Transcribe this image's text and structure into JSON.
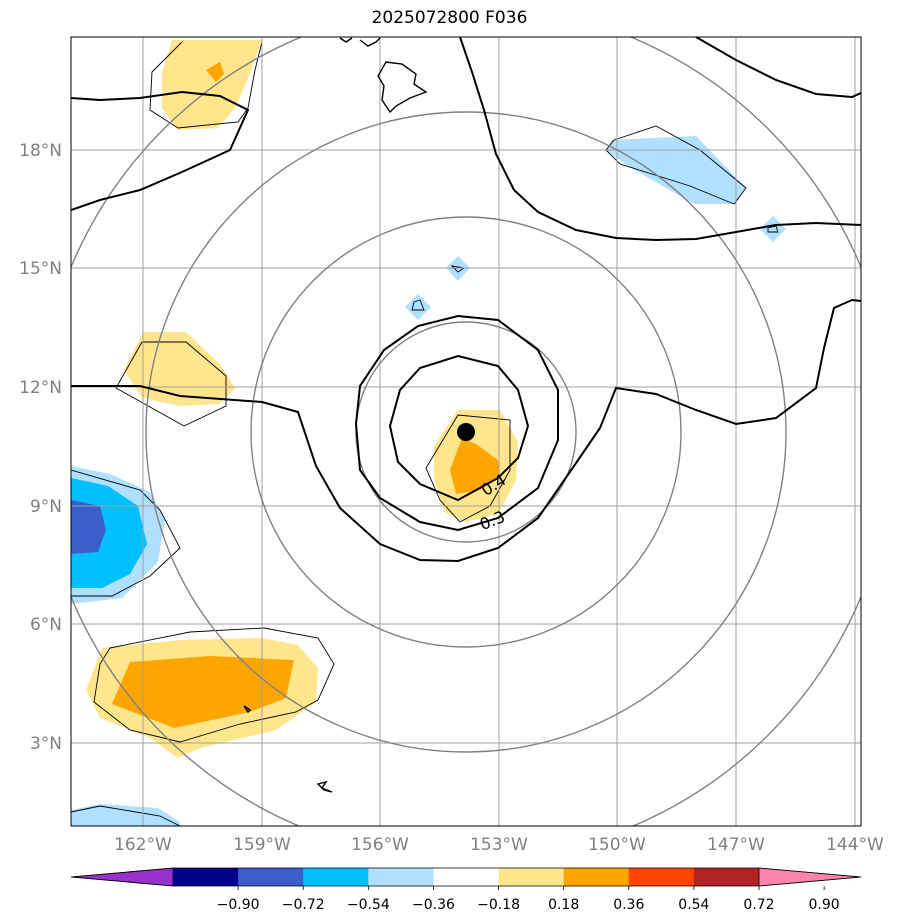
{
  "title": "2025072800 F036",
  "map": {
    "lon_labels": [
      "162°W",
      "159°W",
      "156°W",
      "153°W",
      "150°W",
      "147°W",
      "144°W"
    ],
    "lat_labels": [
      "18°N",
      "15°N",
      "12°N",
      "9°N",
      "6°N",
      "3°N"
    ],
    "contour_labels": [
      "0.4",
      "0.3"
    ],
    "center_marker": "storm-center-dot"
  },
  "colorbar": {
    "colors": [
      "#9932cc",
      "#00008b",
      "#3a5fcd",
      "#00bfff",
      "#b0e0ff",
      "#ffffff",
      "#ffe68c",
      "#ffa500",
      "#ff4500",
      "#b22222",
      "#ff82ab"
    ],
    "tick_labels": [
      "−0.90",
      "−0.72",
      "−0.54",
      "−0.36",
      "−0.18",
      "0.18",
      "0.36",
      "0.54",
      "0.72",
      "0.90"
    ]
  }
}
